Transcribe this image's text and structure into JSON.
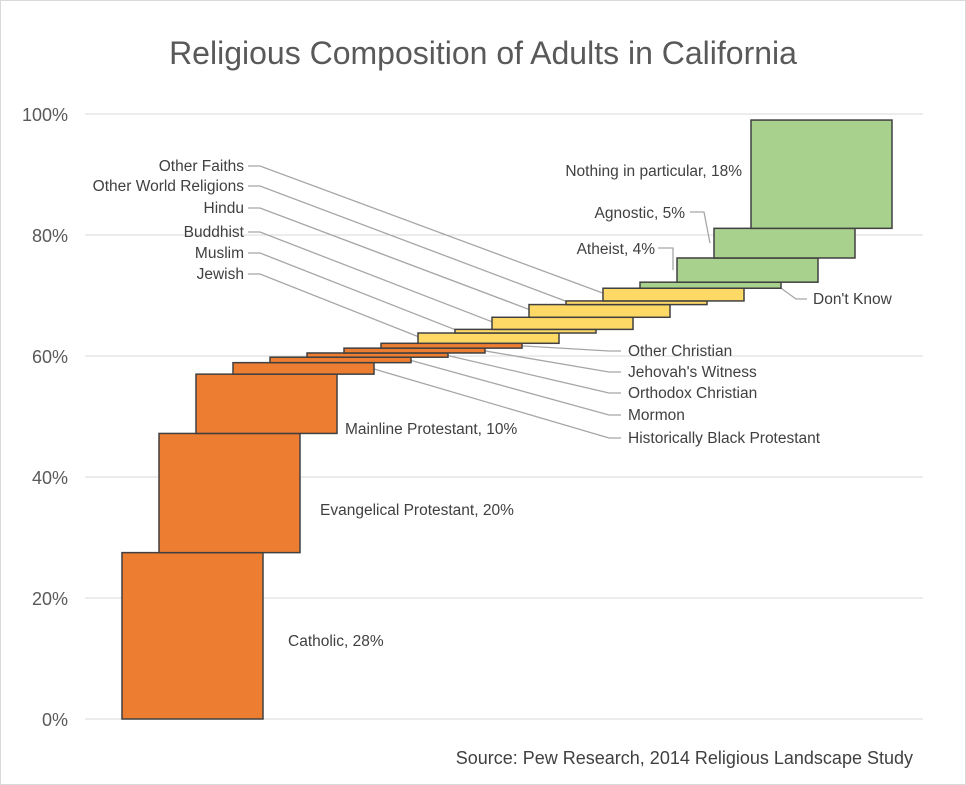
{
  "chart_data": {
    "type": "waterfall",
    "title": "Religious Composition of Adults in California",
    "source": "Source: Pew Research, 2014 Religious Landscape Study",
    "yticks": [
      "0%",
      "20%",
      "40%",
      "60%",
      "80%",
      "100%"
    ],
    "ylim": [
      0,
      100
    ],
    "grid": true,
    "colors": {
      "christian": "#ed7d31",
      "other_faiths": "#ffd966",
      "unaffiliated": "#a9d18e",
      "outline": "#404040",
      "leader": "#a6a6a6",
      "gridline": "#d9d9d9"
    },
    "segments": [
      {
        "label": "Catholic, 28%",
        "value": 27.5,
        "group": "christian"
      },
      {
        "label": "Evangelical Protestant, 20%",
        "value": 19.7,
        "group": "christian"
      },
      {
        "label": "Mainline Protestant, 10%",
        "value": 9.8,
        "group": "christian"
      },
      {
        "label": "Historically Black Protestant",
        "value": 1.9,
        "group": "christian"
      },
      {
        "label": "Mormon",
        "value": 0.9,
        "group": "christian"
      },
      {
        "label": "Orthodox Christian",
        "value": 0.7,
        "group": "christian"
      },
      {
        "label": "Jehovah's Witness",
        "value": 0.8,
        "group": "christian"
      },
      {
        "label": "Other Christian",
        "value": 0.8,
        "group": "christian"
      },
      {
        "label": "Jewish",
        "value": 1.7,
        "group": "other_faiths"
      },
      {
        "label": "Muslim",
        "value": 0.6,
        "group": "other_faiths"
      },
      {
        "label": "Buddhist",
        "value": 2.0,
        "group": "other_faiths"
      },
      {
        "label": "Hindu",
        "value": 2.1,
        "group": "other_faiths"
      },
      {
        "label": "Other World Religions",
        "value": 0.6,
        "group": "other_faiths"
      },
      {
        "label": "Other Faiths",
        "value": 2.1,
        "group": "other_faiths"
      },
      {
        "label": "Don't Know",
        "value": 1.0,
        "group": "unaffiliated"
      },
      {
        "label": "Atheist, 4%",
        "value": 4.0,
        "group": "unaffiliated"
      },
      {
        "label": "Agnostic, 5%",
        "value": 4.9,
        "group": "unaffiliated"
      },
      {
        "label": "Nothing in particular, 18%",
        "value": 17.9,
        "group": "unaffiliated"
      }
    ]
  }
}
